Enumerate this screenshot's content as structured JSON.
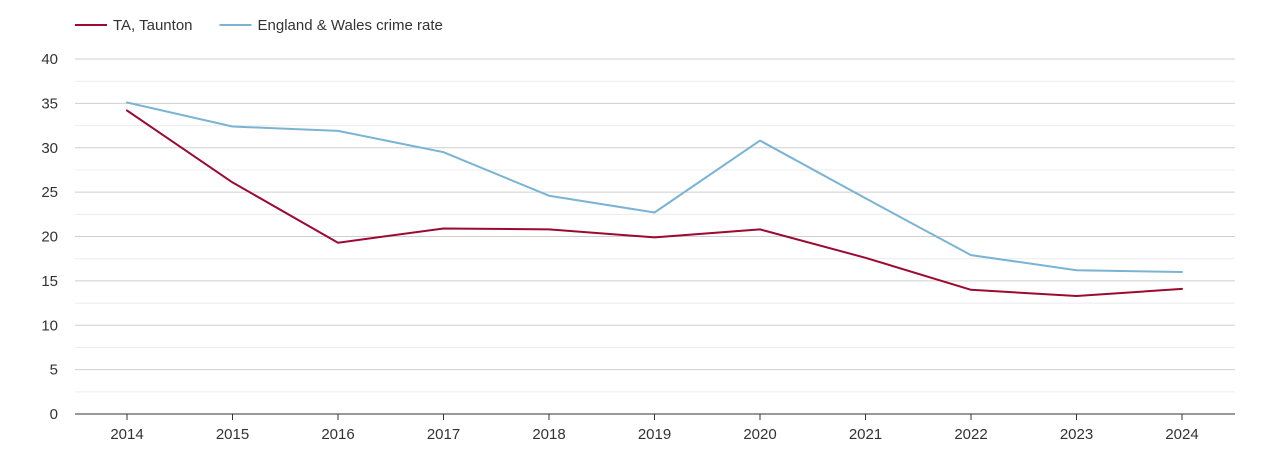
{
  "chart_data": {
    "type": "line",
    "title": "",
    "xlabel": "",
    "ylabel": "",
    "x": [
      "2014",
      "2015",
      "2016",
      "2017",
      "2018",
      "2019",
      "2020",
      "2021",
      "2022",
      "2023",
      "2024"
    ],
    "ylim": [
      0,
      40
    ],
    "yticks": [
      "0",
      "5",
      "10",
      "15",
      "20",
      "25",
      "30",
      "35",
      "40"
    ],
    "grid": true,
    "legend_position": "top-left",
    "series": [
      {
        "name": "TA, Taunton",
        "color": "#9b0a32",
        "values": [
          34.2,
          26.1,
          19.3,
          20.9,
          20.8,
          19.9,
          20.8,
          17.6,
          14.0,
          13.3,
          14.1
        ]
      },
      {
        "name": "England & Wales crime rate",
        "color": "#7ab3d4",
        "values": [
          35.1,
          32.4,
          31.9,
          29.5,
          24.6,
          22.7,
          30.8,
          24.3,
          17.9,
          16.2,
          16.0
        ]
      }
    ]
  }
}
